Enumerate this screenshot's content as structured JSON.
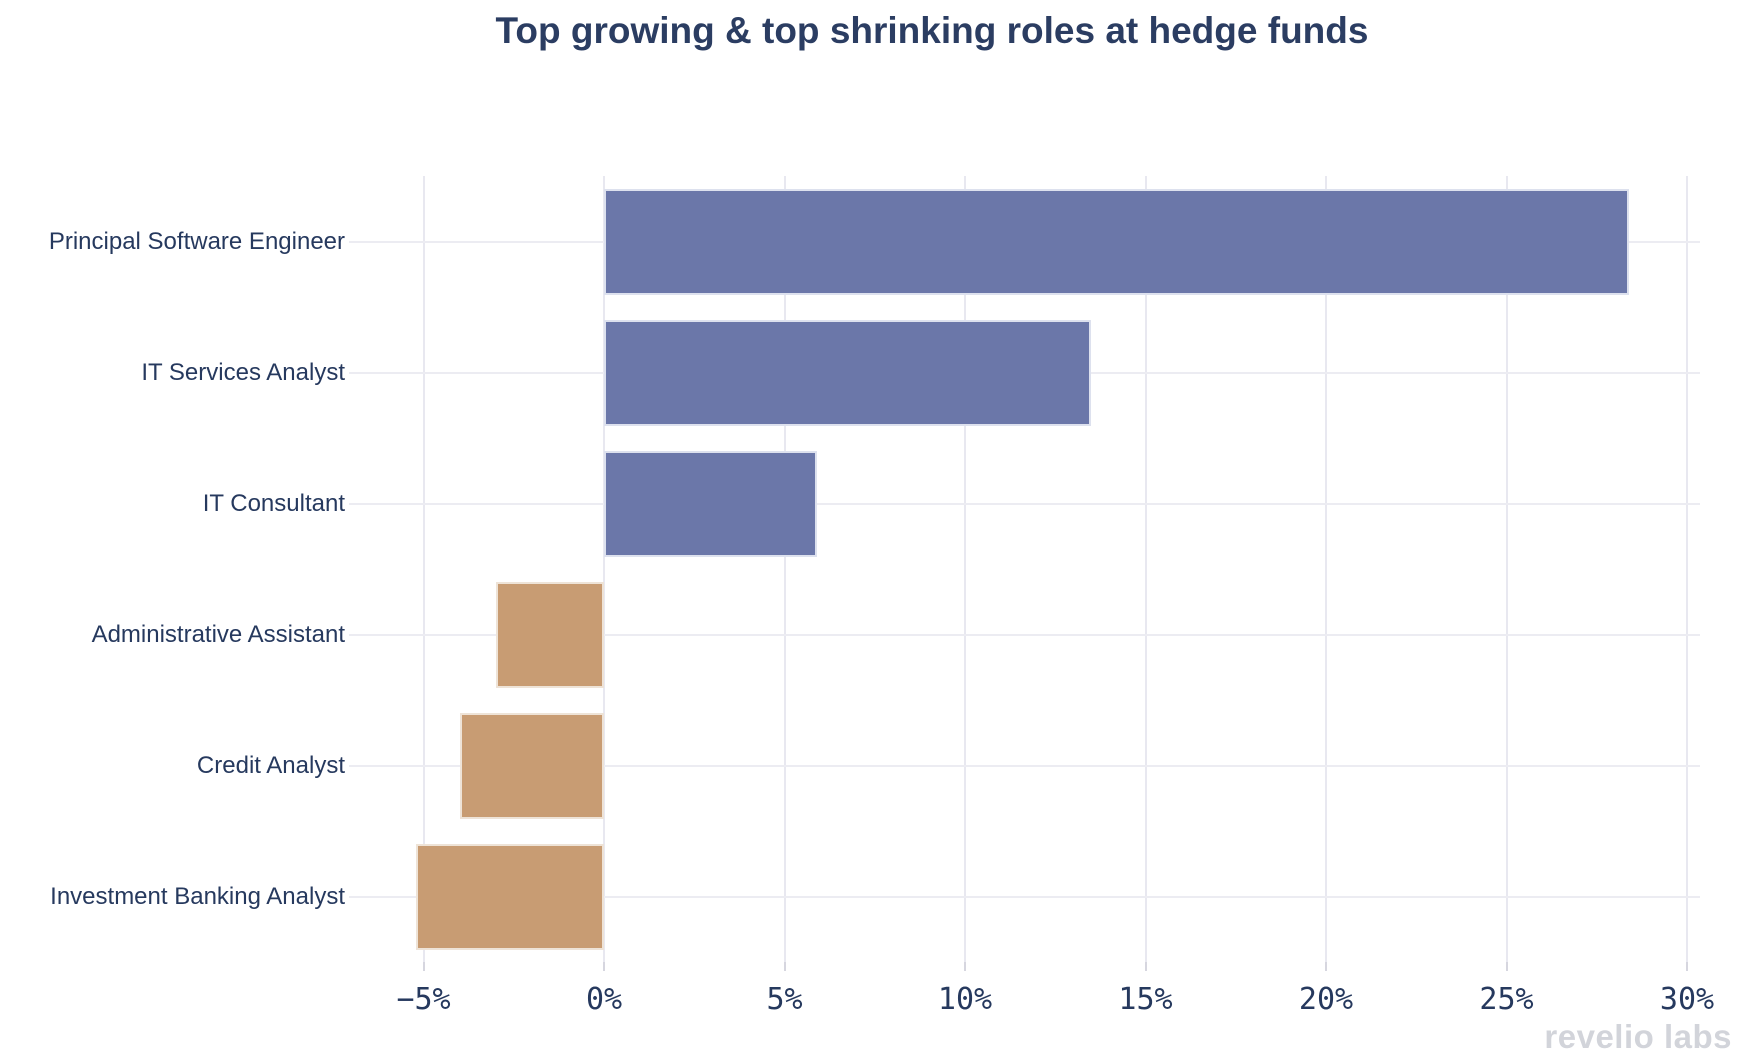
{
  "title": "Top growing & top shrinking roles at hedge funds",
  "watermark": {
    "brand": "revelio labs"
  },
  "chart_data": {
    "type": "bar",
    "orientation": "horizontal",
    "title": "Top growing & top shrinking roles at hedge funds",
    "xlabel": "",
    "ylabel": "",
    "categories": [
      "Principal Software Engineer",
      "IT Services Analyst",
      "IT Consultant",
      "Administrative Assistant",
      "Credit Analyst",
      "Investment Banking Analyst"
    ],
    "values": [
      28.4,
      13.5,
      5.9,
      -3.0,
      -4.0,
      -5.2
    ],
    "unit": "%",
    "x_tick_labels": [
      "−5%",
      "0%",
      "5%",
      "10%",
      "15%",
      "20%",
      "25%",
      "30%"
    ],
    "x_tick_values": [
      -5,
      0,
      5,
      10,
      15,
      20,
      25,
      30
    ],
    "xlim": [
      -6.9,
      30.4
    ],
    "grid": true,
    "legend": false,
    "colors": {
      "positive_bar": "#6b77a9",
      "negative_bar": "#c89c73",
      "title_text": "#2b3d62",
      "axis_text": "#26395e",
      "gridline": "#e8e8f0",
      "watermark_text": "#d2d4da"
    }
  }
}
